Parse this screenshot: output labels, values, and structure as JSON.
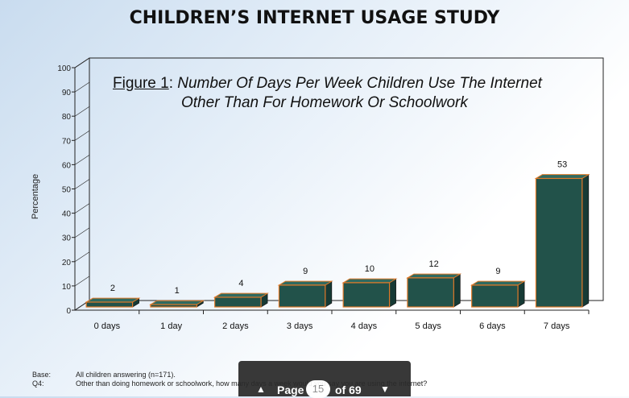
{
  "page_title": "CHILDREN’S INTERNET USAGE STUDY",
  "chart_data": {
    "type": "bar",
    "figure_label": "Figure 1",
    "title_line1": "Number Of Days Per Week Children Use The Internet",
    "title_line2": "Other Than For Homework Or Schoolwork",
    "ylabel": "Percentage",
    "xlabel": "",
    "ylim": [
      0,
      100
    ],
    "yticks": [
      0,
      10,
      20,
      30,
      40,
      50,
      60,
      70,
      80,
      90,
      100
    ],
    "categories": [
      "0 days",
      "1 day",
      "2 days",
      "3 days",
      "4 days",
      "5 days",
      "6 days",
      "7 days"
    ],
    "values": [
      2,
      1,
      4,
      9,
      10,
      12,
      9,
      53
    ],
    "bar_color": "#22524a",
    "bar_edge_color": "#e07a2a"
  },
  "base": {
    "base_key": "Base:",
    "base_text": "All children answering (n=171).",
    "q_key": "Q4:",
    "q_text": "Other than doing homework or schoolwork, how many days a week would you say you are using the internet?"
  },
  "pager": {
    "label": "Page",
    "current": "15",
    "total": "of 69"
  }
}
